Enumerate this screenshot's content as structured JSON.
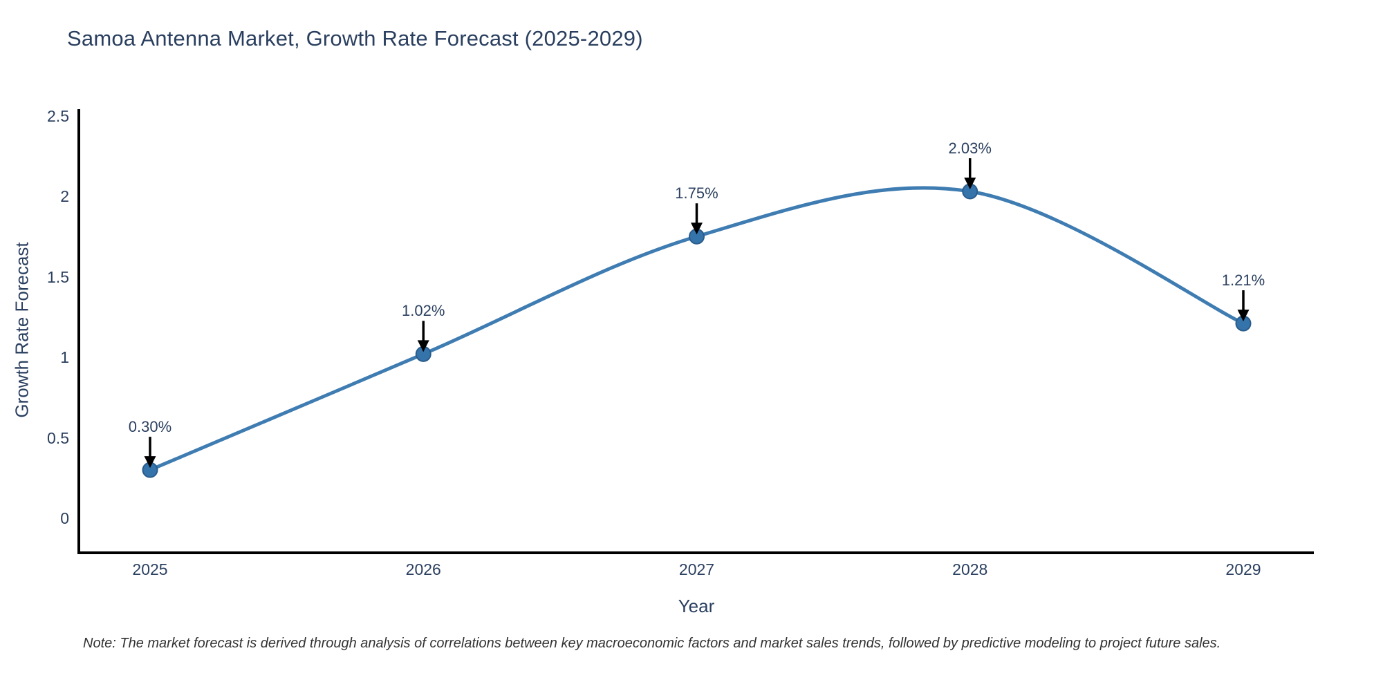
{
  "chart_data": {
    "type": "line",
    "title": "Samoa Antenna Market, Growth Rate Forecast (2025-2029)",
    "xlabel": "Year",
    "ylabel": "Growth Rate Forecast",
    "x": [
      2025,
      2026,
      2027,
      2028,
      2029
    ],
    "xtick_labels": [
      "2025",
      "2026",
      "2027",
      "2028",
      "2029"
    ],
    "values": [
      0.3,
      1.02,
      1.75,
      2.03,
      1.21
    ],
    "point_labels": [
      "0.30%",
      "1.02%",
      "1.75%",
      "2.03%",
      "1.21%"
    ],
    "yticks": [
      0,
      0.5,
      1,
      1.5,
      2,
      2.5
    ],
    "ytick_labels": [
      "0",
      "0.5",
      "1",
      "1.5",
      "2",
      "2.5"
    ],
    "ylim": [
      -0.21,
      2.54
    ],
    "line_shape": "spline",
    "markers": true,
    "grid": false,
    "legend": "none",
    "annotations_arrow": "down",
    "colors": {
      "line": "#3e7cb2",
      "marker_fill": "#3573ab",
      "marker_stroke": "#2a5d8c",
      "axis": "#000000",
      "arrow": "#000000",
      "text": "#2a3f5f",
      "note_text": "#333333",
      "background": "#ffffff"
    },
    "note": "Note: The market forecast is derived through analysis of correlations between key macroeconomic factors and market sales trends, followed by predictive modeling to project future sales."
  }
}
